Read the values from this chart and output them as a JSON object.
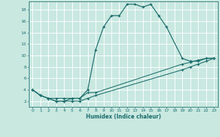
{
  "xlabel": "Humidex (Indice chaleur)",
  "xlim": [
    -0.5,
    23.5
  ],
  "ylim": [
    1,
    19.5
  ],
  "yticks": [
    2,
    4,
    6,
    8,
    10,
    12,
    14,
    16,
    18
  ],
  "xticks": [
    0,
    1,
    2,
    3,
    4,
    5,
    6,
    7,
    8,
    9,
    10,
    11,
    12,
    13,
    14,
    15,
    16,
    17,
    18,
    19,
    20,
    21,
    22,
    23
  ],
  "bg_color": "#c8e8e0",
  "line_color": "#1a6b6b",
  "grid_color": "#ffffff",
  "line1_x": [
    0,
    1,
    2,
    3,
    4,
    5,
    6,
    7,
    8,
    9,
    10,
    11,
    12,
    13,
    14,
    15,
    16,
    17,
    19,
    20,
    21,
    22,
    23
  ],
  "line1_y": [
    4,
    3,
    2.5,
    2,
    2,
    2.5,
    2.5,
    4,
    11,
    15,
    17,
    17,
    19,
    19,
    18.5,
    19,
    17,
    15,
    9.5,
    9,
    9,
    9.5,
    9.5
  ],
  "line2_x": [
    0,
    1,
    2,
    3,
    4,
    5,
    6,
    7,
    8,
    19,
    20,
    21,
    22,
    23
  ],
  "line2_y": [
    4,
    3,
    2.5,
    2.5,
    2.5,
    2.5,
    2.5,
    3.5,
    3.5,
    8.5,
    8.8,
    9.2,
    9.5,
    9.5
  ],
  "line3_x": [
    0,
    1,
    2,
    3,
    4,
    5,
    6,
    7,
    8,
    19,
    20,
    21,
    22,
    23
  ],
  "line3_y": [
    4,
    3,
    2.5,
    2.0,
    2.0,
    2.0,
    2.0,
    2.5,
    3.0,
    7.5,
    8.0,
    8.5,
    9.0,
    9.5
  ]
}
